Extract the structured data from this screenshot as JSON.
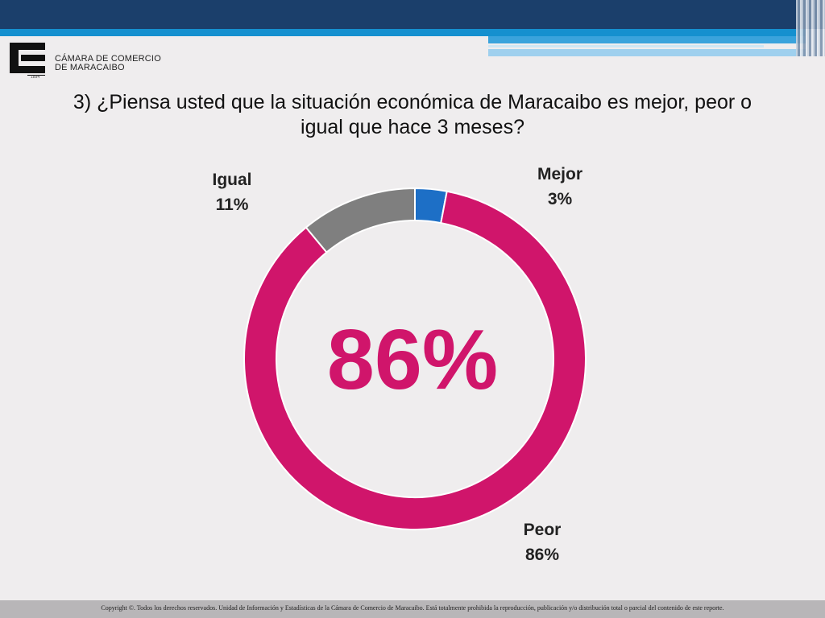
{
  "header": {
    "org_line1": "CÁMARA DE COMERCIO",
    "org_line2": "DE MARACAIBO",
    "org_year": "1894"
  },
  "question": {
    "line1": "3) ¿Piensa usted que la situación económica de Maracaibo es mejor, peor o",
    "line2": "igual que hace 3 meses?"
  },
  "chart_data": {
    "type": "pie",
    "variant": "donut",
    "categories": [
      "Mejor",
      "Peor",
      "Igual"
    ],
    "values": [
      3,
      86,
      11
    ],
    "value_labels": [
      "3%",
      "86%",
      "11%"
    ],
    "colors": [
      "#1d6fc6",
      "#d0156b",
      "#7f7f7f"
    ],
    "center_label": "86%",
    "title": "",
    "legend": "none"
  },
  "footer": {
    "text": "Copyright ©. Todos los derechos reservados. Unidad de Información y Estadísticas de la Cámara de Comercio de Maracaibo. Está totalmente prohibida la reproducción, publicación y/o distribución total o parcial del contenido de este reporte."
  }
}
